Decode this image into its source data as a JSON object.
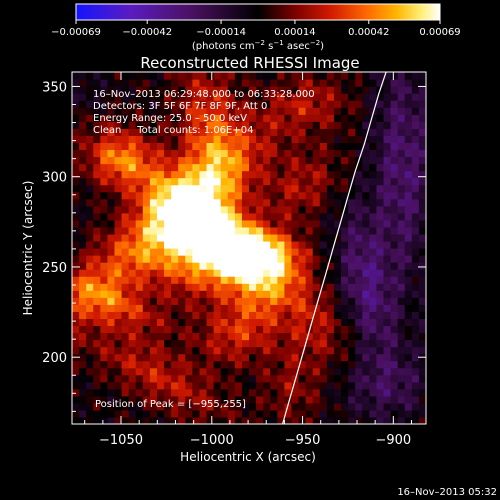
{
  "chart_data": {
    "type": "heatmap",
    "title": "Reconstructed RHESSI Image",
    "xlabel": "Heliocentric X (arcsec)",
    "ylabel": "Heliocentric Y (arcsec)",
    "xlim": [
      -1077,
      -882
    ],
    "ylim": [
      163,
      358
    ],
    "x_ticks": [
      -1050,
      -1000,
      -950,
      -900
    ],
    "x_tick_labels": [
      "−1050",
      "−1000",
      "−950",
      "−900"
    ],
    "y_ticks": [
      200,
      250,
      300,
      350
    ],
    "y_tick_labels": [
      "200",
      "250",
      "300",
      "350"
    ],
    "colorbar": {
      "range": [
        -0.00069,
        0.00069
      ],
      "ticks": [
        -0.00069,
        -0.00042,
        -0.00014,
        0.00014,
        0.00042,
        0.00069
      ],
      "tick_labels": [
        "−0.00069",
        "−0.00042",
        "−0.00014",
        "0.00014",
        "0.00042",
        "0.00069"
      ],
      "unit_main": "(photons cm",
      "unit_sup1": "−2",
      "unit_mid": " s",
      "unit_sup2": "−1",
      "unit_tail": " asec",
      "unit_sup3": "−2",
      "unit_close": ")",
      "colors": [
        "#1414ff",
        "#5a1cc0",
        "#4a1060",
        "#000000",
        "#7a0000",
        "#d21a00",
        "#ff6a00",
        "#ffb400",
        "#fff07a",
        "#ffffff"
      ]
    },
    "limb_curve": {
      "x": [
        -961,
        -957,
        -953,
        -949,
        -945,
        -941,
        -937,
        -933,
        -929,
        -925,
        -921,
        -916,
        -912,
        -908,
        -904
      ],
      "y": [
        163,
        177,
        191,
        205,
        219,
        233,
        247,
        261,
        275,
        289,
        303,
        318,
        332,
        346,
        358
      ]
    },
    "sources": [
      {
        "x": -992,
        "y": 262,
        "sx": 48,
        "sy": 12,
        "angle": -42,
        "amp": 0.00058
      },
      {
        "x": -1025,
        "y": 275,
        "sx": 55,
        "sy": 12,
        "angle": 42,
        "amp": 0.0004
      },
      {
        "x": -1010,
        "y": 255,
        "sx": 18,
        "sy": 16,
        "angle": 0,
        "amp": 0.00038
      },
      {
        "x": -972,
        "y": 258,
        "sx": 16,
        "sy": 9,
        "angle": -10,
        "amp": 0.0005
      },
      {
        "x": -1000,
        "y": 322,
        "sx": 12,
        "sy": 28,
        "angle": 8,
        "amp": 0.00035
      },
      {
        "x": -1052,
        "y": 310,
        "sx": 12,
        "sy": 10,
        "angle": 0,
        "amp": 0.0003
      },
      {
        "x": -1055,
        "y": 230,
        "sx": 22,
        "sy": 8,
        "angle": -25,
        "amp": 0.00028
      },
      {
        "x": -985,
        "y": 215,
        "sx": 16,
        "sy": 12,
        "angle": 30,
        "amp": 0.00028
      },
      {
        "x": -1030,
        "y": 190,
        "sx": 30,
        "sy": 10,
        "angle": -30,
        "amp": 0.00024
      },
      {
        "x": -950,
        "y": 295,
        "sx": 18,
        "sy": 12,
        "angle": 40,
        "amp": 0.0002
      },
      {
        "x": -945,
        "y": 340,
        "sx": 16,
        "sy": 10,
        "angle": 0,
        "amp": 0.00016
      },
      {
        "x": -955,
        "y": 185,
        "sx": 12,
        "sy": 16,
        "angle": 0,
        "amp": 0.00016
      },
      {
        "x": -915,
        "y": 240,
        "sx": 10,
        "sy": 30,
        "angle": 10,
        "amp": -0.00028
      },
      {
        "x": -895,
        "y": 305,
        "sx": 12,
        "sy": 45,
        "angle": 0,
        "amp": -0.00026
      },
      {
        "x": -905,
        "y": 185,
        "sx": 18,
        "sy": 14,
        "angle": 0,
        "amp": -0.0002
      },
      {
        "x": -960,
        "y": 225,
        "sx": 8,
        "sy": 8,
        "angle": 0,
        "amp": -0.00012
      },
      {
        "x": -1070,
        "y": 345,
        "sx": 10,
        "sy": 8,
        "angle": 0,
        "amp": -0.0001
      }
    ],
    "annotations": {
      "time_range": "16–Nov–2013 06:29:48.000 to 06:33:28.000",
      "detectors": "Detectors: 3F 5F 6F 7F 8F 9F, Att 0",
      "energy_range": "Energy Range: 25.0 – 50.0 keV",
      "clean": "Clean     Total counts: 1.06E+04",
      "peak": "Position of Peak = [−955,255]"
    },
    "footer_timestamp": "16–Nov–2013 05:32"
  }
}
